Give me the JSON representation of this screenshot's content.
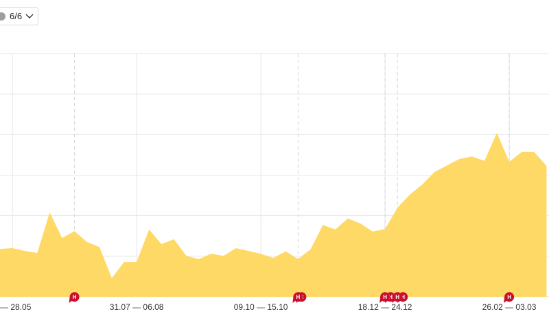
{
  "controls": {
    "toggle_label": "6/6"
  },
  "event_marker_label": "Н",
  "chart_data": {
    "type": "area",
    "color": "#fed966",
    "grid": true,
    "categories": [
      null,
      "— 28.05",
      null,
      null,
      null,
      null,
      null,
      null,
      null,
      null,
      null,
      "31.07 — 06.08",
      null,
      null,
      null,
      null,
      null,
      null,
      null,
      null,
      null,
      "09.10 — 15.10",
      null,
      null,
      null,
      null,
      null,
      null,
      null,
      null,
      null,
      "18.12 — 24.12",
      null,
      null,
      null,
      null,
      null,
      null,
      null,
      null,
      null,
      "26.02 — 03.03",
      null,
      null,
      null
    ],
    "values": [
      1.18,
      1.2,
      1.13,
      1.08,
      2.08,
      1.45,
      1.62,
      1.35,
      1.23,
      0.46,
      0.86,
      0.86,
      1.66,
      1.3,
      1.42,
      1.01,
      0.93,
      1.06,
      1.01,
      1.2,
      1.13,
      1.06,
      0.96,
      1.12,
      0.93,
      1.17,
      1.77,
      1.66,
      1.93,
      1.81,
      1.61,
      1.67,
      2.2,
      2.52,
      2.77,
      3.08,
      3.24,
      3.4,
      3.46,
      3.35,
      4.04,
      3.33,
      3.57,
      3.57,
      3.23
    ],
    "ylim": [
      0,
      6
    ],
    "yticks": [
      0,
      1,
      2,
      3,
      4,
      5,
      6
    ]
  }
}
